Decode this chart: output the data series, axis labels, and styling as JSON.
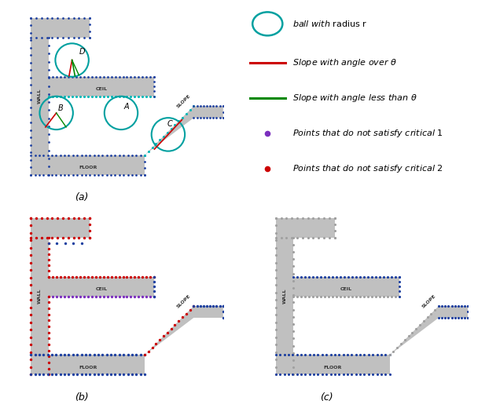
{
  "bg_color": "#ffffff",
  "gray_color": "#c0c0c0",
  "dot_blue": "#1c3fa0",
  "dot_cyan": "#00b8b8",
  "dot_purple": "#7b2fbe",
  "dot_red": "#cc0000",
  "dot_gray": "#a0a0a0",
  "teal": "#00a0a0",
  "line_red": "#cc0000",
  "line_green": "#008800",
  "title_a": "(a)",
  "title_b": "(b)",
  "title_c": "(c)"
}
